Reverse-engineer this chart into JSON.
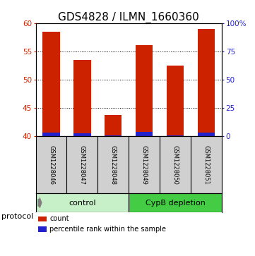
{
  "title": "GDS4828 / ILMN_1660360",
  "samples": [
    "GSM1228046",
    "GSM1228047",
    "GSM1228048",
    "GSM1228049",
    "GSM1228050",
    "GSM1228051"
  ],
  "count_values": [
    58.5,
    53.5,
    43.8,
    56.1,
    52.5,
    59.0
  ],
  "percentile_values": [
    3.5,
    3.0,
    0.8,
    4.0,
    1.0,
    3.5
  ],
  "baseline": 40.0,
  "ylim_left": [
    40,
    60
  ],
  "ylim_right": [
    0,
    100
  ],
  "yticks_left": [
    40,
    45,
    50,
    55,
    60
  ],
  "yticks_right": [
    0,
    25,
    50,
    75,
    100
  ],
  "ytick_labels_right": [
    "0",
    "25",
    "50",
    "75",
    "100%"
  ],
  "bar_color_red": "#cc2200",
  "bar_color_blue": "#2222cc",
  "group_labels": [
    "control",
    "CypB depletion"
  ],
  "group_colors": [
    "#c8f0c8",
    "#44cc44"
  ],
  "group_ranges": [
    [
      0,
      3
    ],
    [
      3,
      6
    ]
  ],
  "bar_width": 0.55,
  "protocol_label": "protocol",
  "legend_items": [
    "count",
    "percentile rank within the sample"
  ],
  "legend_colors": [
    "#cc2200",
    "#2222cc"
  ],
  "label_area_bg": "#d0d0d0",
  "title_fontsize": 11,
  "tick_fontsize": 7.5,
  "label_fontsize": 9
}
